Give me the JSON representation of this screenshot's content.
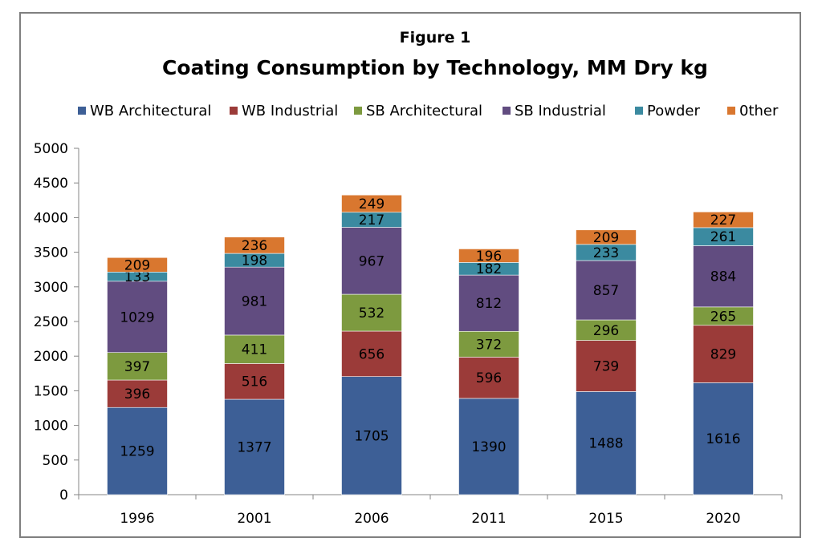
{
  "chart_data": {
    "type": "bar",
    "stacked": true,
    "label": "Figure 1",
    "title": "Coating Consumption by Technology, MM Dry kg",
    "categories": [
      "1996",
      "2001",
      "2006",
      "2011",
      "2015",
      "2020"
    ],
    "series": [
      {
        "name": "WB Architectural",
        "color": "#3d5f96",
        "values": [
          1259,
          1377,
          1705,
          1390,
          1488,
          1616
        ]
      },
      {
        "name": "WB Industrial",
        "color": "#9b3b39",
        "values": [
          396,
          516,
          656,
          596,
          739,
          829
        ]
      },
      {
        "name": "SB Architectural",
        "color": "#7d9a3f",
        "values": [
          397,
          411,
          532,
          372,
          296,
          265
        ]
      },
      {
        "name": "SB Industrial",
        "color": "#614c80",
        "values": [
          1029,
          981,
          967,
          812,
          857,
          884
        ]
      },
      {
        "name": "Powder",
        "color": "#3b8aa0",
        "values": [
          133,
          198,
          217,
          182,
          233,
          261
        ]
      },
      {
        "name": "0ther",
        "color": "#d9772f",
        "values": [
          209,
          236,
          249,
          196,
          209,
          227
        ]
      }
    ],
    "ylim": [
      0,
      5000
    ],
    "yticks": [
      "0",
      "500",
      "1000",
      "1500",
      "2000",
      "2500",
      "3000",
      "3500",
      "4000",
      "4500",
      "5000"
    ],
    "grid": false,
    "legend_position": "top"
  }
}
